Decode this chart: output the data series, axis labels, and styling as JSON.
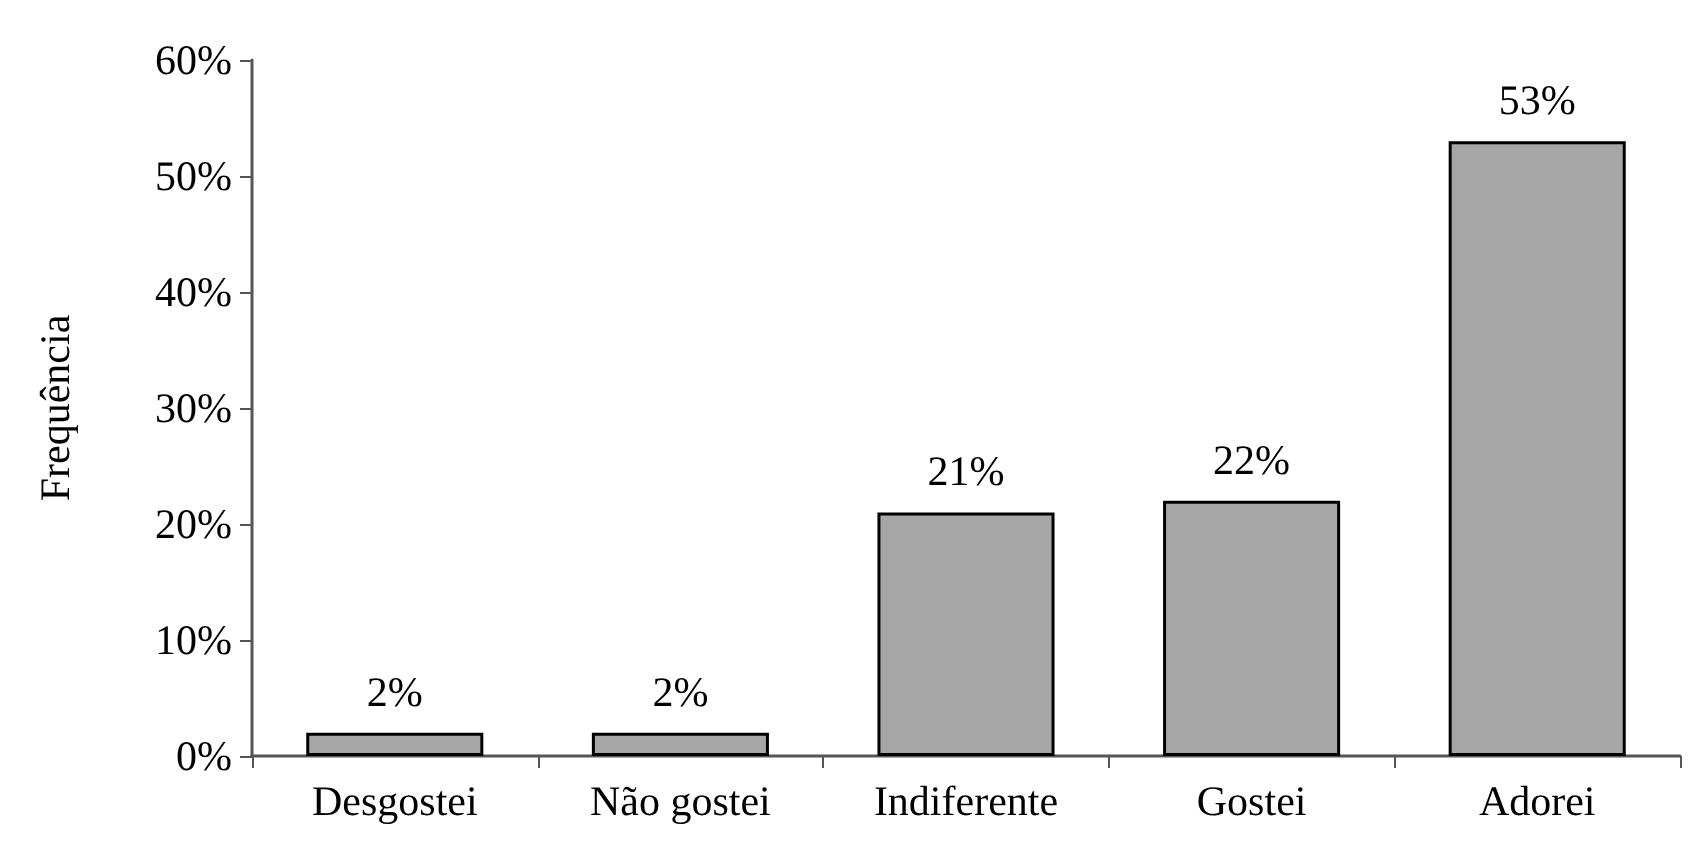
{
  "chart_data": {
    "type": "bar",
    "ylabel": "Frequência",
    "categories": [
      "Desgostei",
      "Não gostei",
      "Indiferente",
      "Gostei",
      "Adorei"
    ],
    "values": [
      2,
      2,
      21,
      22,
      53
    ],
    "value_labels": [
      "2%",
      "2%",
      "21%",
      "22%",
      "53%"
    ],
    "color": "#a6a6a6",
    "ylim": [
      0,
      60
    ],
    "yticks": [
      {
        "value": 0,
        "label": "0%"
      },
      {
        "value": 10,
        "label": "10%"
      },
      {
        "value": 20,
        "label": "20%"
      },
      {
        "value": 30,
        "label": "30%"
      },
      {
        "value": 40,
        "label": "40%"
      },
      {
        "value": 50,
        "label": "50%"
      },
      {
        "value": 60,
        "label": "60%"
      }
    ],
    "grid": false
  }
}
